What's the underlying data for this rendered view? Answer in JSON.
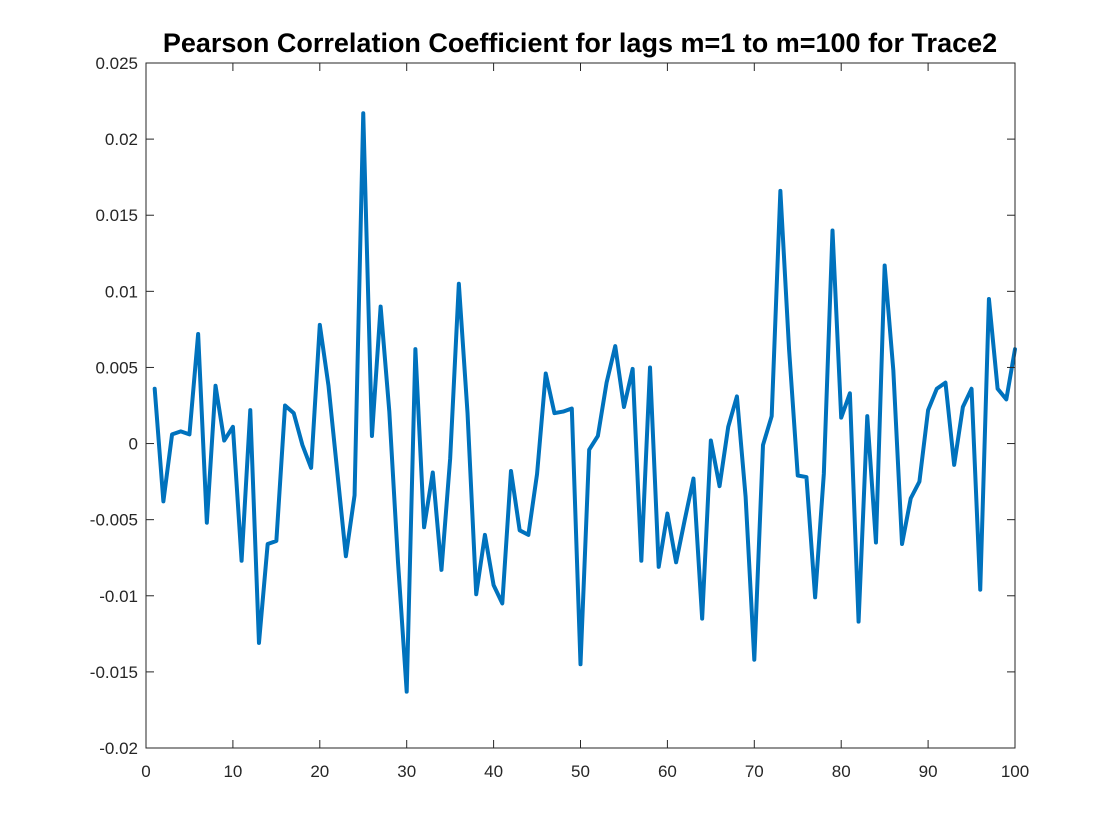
{
  "chart_data": {
    "type": "line",
    "title": "Pearson Correlation Coefficient for lags m=1 to m=100 for Trace2",
    "xlabel": "",
    "ylabel": "",
    "xlim": [
      0,
      100
    ],
    "ylim": [
      -0.02,
      0.025
    ],
    "x_ticks": [
      0,
      10,
      20,
      30,
      40,
      50,
      60,
      70,
      80,
      90,
      100
    ],
    "x_tick_labels": [
      "0",
      "10",
      "20",
      "30",
      "40",
      "50",
      "60",
      "70",
      "80",
      "90",
      "100"
    ],
    "y_ticks": [
      -0.02,
      -0.015,
      -0.01,
      -0.005,
      0,
      0.005,
      0.01,
      0.015,
      0.02,
      0.025
    ],
    "y_tick_labels": [
      "-0.02",
      "-0.015",
      "-0.01",
      "-0.005",
      "0",
      "0.005",
      "0.01",
      "0.015",
      "0.02",
      "0.025"
    ],
    "grid": false,
    "line_color": "#0072BD",
    "series": [
      {
        "x": [
          1,
          2,
          3,
          4,
          5,
          6,
          7,
          8,
          9,
          10,
          11,
          12,
          13,
          14,
          15,
          16,
          17,
          18,
          19,
          20,
          21,
          22,
          23,
          24,
          25,
          26,
          27,
          28,
          29,
          30,
          31,
          32,
          33,
          34,
          35,
          36,
          37,
          38,
          39,
          40,
          41,
          42,
          43,
          44,
          45,
          46,
          47,
          48,
          49,
          50,
          51,
          52,
          53,
          54,
          55,
          56,
          57,
          58,
          59,
          60,
          61,
          62,
          63,
          64,
          65,
          66,
          67,
          68,
          69,
          70,
          71,
          72,
          73,
          74,
          75,
          76,
          77,
          78,
          79,
          80,
          81,
          82,
          83,
          84,
          85,
          86,
          87,
          88,
          89,
          90,
          91,
          92,
          93,
          94,
          95,
          96,
          97,
          98,
          99,
          100
        ],
        "values": [
          0.0036,
          -0.0038,
          0.0006,
          0.0008,
          0.0006,
          0.0072,
          -0.0052,
          0.0038,
          0.0002,
          0.0011,
          -0.0077,
          0.0022,
          -0.0131,
          -0.0066,
          -0.0064,
          0.0025,
          0.002,
          -0.0001,
          -0.0016,
          0.0078,
          0.0038,
          -0.0018,
          -0.0074,
          -0.0034,
          0.0217,
          0.0005,
          0.009,
          0.0021,
          -0.0078,
          -0.0163,
          0.0062,
          -0.0055,
          -0.0019,
          -0.0083,
          -0.001,
          0.0105,
          0.002,
          -0.0099,
          -0.006,
          -0.0093,
          -0.0105,
          -0.0018,
          -0.0057,
          -0.006,
          -0.002,
          0.0046,
          0.002,
          0.0021,
          0.0023,
          -0.0145,
          -0.0004,
          0.0005,
          0.004,
          0.0064,
          0.0024,
          0.0049,
          -0.0077,
          0.005,
          -0.0081,
          -0.0046,
          -0.0078,
          -0.005,
          -0.0023,
          -0.0115,
          0.0002,
          -0.0028,
          0.0011,
          0.0031,
          -0.0035,
          -0.0142,
          -0.0001,
          0.0018,
          0.0166,
          0.0062,
          -0.0021,
          -0.0022,
          -0.0101,
          -0.002,
          0.014,
          0.0017,
          0.0033,
          -0.0117,
          0.0018,
          -0.0065,
          0.0117,
          0.0048,
          -0.0066,
          -0.0036,
          -0.0025,
          0.0022,
          0.0036,
          0.004,
          -0.0014,
          0.0024,
          0.0036,
          -0.0096,
          0.0095,
          0.0036,
          0.0029,
          0.0062
        ]
      }
    ]
  }
}
